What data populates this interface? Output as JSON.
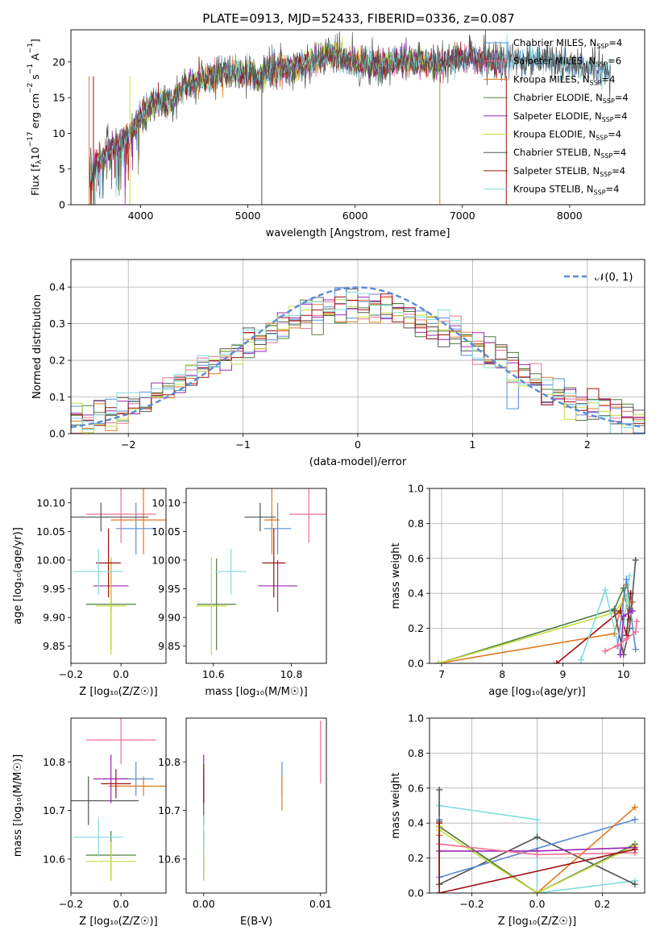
{
  "figure": {
    "title": "PLATE=0913, MJD=52433, FIBERID=0336, z=0.087"
  },
  "colors": {
    "Chabrier MILES": "#5b8dd6",
    "Salpeter MILES": "#f07090",
    "Kroupa MILES": "#e07a1f",
    "Chabrier ELODIE": "#4f7d3f",
    "Salpeter ELODIE": "#9b27b0",
    "Kroupa ELODIE": "#c6dd40",
    "Chabrier STELIB": "#555555",
    "Salpeter STELIB": "#a01010",
    "Kroupa STELIB": "#80dcdc",
    "normal": "#5b8dd6"
  },
  "chart_data": [
    {
      "id": "spectrum",
      "type": "line",
      "xlabel": "wavelength [Angstrom, rest frame]",
      "ylabel_parts": {
        "pre": "Flux [f",
        "sub1": "λ",
        "mid": "10",
        "sup1": "−17",
        "mid2": " erg cm",
        "sup2": "−2",
        "mid3": " s",
        "sup3": "−1",
        "mid4": " A",
        "sup4": "−1",
        "post": "]"
      },
      "xlim": [
        3350,
        8700
      ],
      "ylim": [
        0,
        24.5
      ],
      "xticks": [
        4000,
        5000,
        6000,
        7000,
        8000
      ],
      "yticks": [
        0,
        5,
        10,
        15,
        20
      ],
      "grid": false,
      "legend_position": "top-right",
      "series": [
        {
          "name": "Chabrier MILES",
          "nssp": "4"
        },
        {
          "name": "Salpeter MILES",
          "nssp": "6"
        },
        {
          "name": "Kroupa MILES",
          "nssp": "4"
        },
        {
          "name": "Chabrier ELODIE",
          "nssp": "4"
        },
        {
          "name": "Salpeter ELODIE",
          "nssp": "4"
        },
        {
          "name": "Kroupa ELODIE",
          "nssp": "4"
        },
        {
          "name": "Chabrier STELIB",
          "nssp": "4"
        },
        {
          "name": "Salpeter STELIB",
          "nssp": "4"
        },
        {
          "name": "Kroupa STELIB",
          "nssp": "4"
        }
      ],
      "continuum": {
        "x": [
          3500,
          3600,
          3700,
          3800,
          3900,
          4000,
          4100,
          4200,
          4300,
          4400,
          4500,
          4600,
          4800,
          5000,
          5100,
          5200,
          5400,
          5600,
          5800,
          6000,
          6200,
          6400,
          6600,
          6800,
          7000,
          7200,
          7400,
          7600,
          7800,
          8000,
          8200,
          8400
        ],
        "y": [
          4.5,
          5.5,
          7.5,
          8.5,
          9.5,
          12.5,
          14,
          14.5,
          14.5,
          16.5,
          17,
          17.8,
          18.5,
          18.5,
          17.5,
          19,
          19.2,
          20.2,
          21,
          20,
          19.5,
          20,
          20,
          19.8,
          20.5,
          20.5,
          20,
          20.5,
          20.5,
          19.5,
          19,
          18
        ]
      }
    },
    {
      "id": "residuals",
      "type": "line",
      "xlabel": "(data-model)/error",
      "ylabel": "Normed distribution",
      "xlim": [
        -2.5,
        2.5
      ],
      "ylim": [
        0,
        0.475
      ],
      "xticks": [
        -2,
        -1,
        0,
        1,
        2
      ],
      "yticks": [
        0.0,
        0.1,
        0.2,
        0.3,
        0.4
      ],
      "grid": true,
      "legend_position": "top-right",
      "legend_label": "𝒩(0, 1)"
    },
    {
      "id": "age_vs_Z",
      "type": "scatter",
      "xlabel": "Z [log₁₀(Z/Z☉)]",
      "ylabel": "age  [log₁₀(age/yr)]",
      "xlim": [
        -0.2,
        0.18
      ],
      "ylim": [
        9.82,
        10.125
      ],
      "xticks": [
        -0.2,
        0.0
      ],
      "yticks": [
        9.85,
        9.9,
        9.95,
        10.0,
        10.05,
        10.1
      ],
      "points": [
        {
          "s": "Chabrier MILES",
          "x": 0.06,
          "xe": 0.08,
          "y": 10.055,
          "ye": 0.045
        },
        {
          "s": "Salpeter MILES",
          "x": 0.0,
          "xe": 0.14,
          "y": 10.08,
          "ye": 0.05
        },
        {
          "s": "Kroupa MILES",
          "x": 0.09,
          "xe": 0.13,
          "y": 10.07,
          "ye": 0.06
        },
        {
          "s": "Chabrier ELODIE",
          "x": -0.04,
          "xe": 0.1,
          "y": 9.923,
          "ye": 0.08
        },
        {
          "s": "Salpeter ELODIE",
          "x": -0.04,
          "xe": 0.07,
          "y": 9.955,
          "ye": 0.045
        },
        {
          "s": "Kroupa ELODIE",
          "x": -0.04,
          "xe": 0.06,
          "y": 9.92,
          "ye": 0.085
        },
        {
          "s": "Chabrier STELIB",
          "x": -0.08,
          "xe": 0.19,
          "y": 10.075,
          "ye": 0.025
        },
        {
          "s": "Salpeter STELIB",
          "x": -0.05,
          "xe": 0.05,
          "y": 9.995,
          "ye": 0.06
        },
        {
          "s": "Kroupa STELIB",
          "x": -0.09,
          "xe": 0.1,
          "y": 9.98,
          "ye": 0.04
        }
      ]
    },
    {
      "id": "age_vs_mass",
      "type": "scatter",
      "xlabel": "mass [log₁₀(M/M☉)]",
      "ylabel": "",
      "xlim": [
        10.53,
        10.89
      ],
      "ylim": [
        9.82,
        10.125
      ],
      "xticks": [
        10.6,
        10.8
      ],
      "yticks": [
        9.85,
        9.9,
        9.95,
        10.0,
        10.05,
        10.1
      ],
      "points": [
        {
          "s": "Chabrier MILES",
          "x": 10.765,
          "xe": 0.035,
          "y": 10.055,
          "ye": 0.045
        },
        {
          "s": "Salpeter MILES",
          "x": 10.845,
          "xe": 0.05,
          "y": 10.08,
          "ye": 0.05
        },
        {
          "s": "Kroupa MILES",
          "x": 10.75,
          "xe": 0.02,
          "y": 10.07,
          "ye": 0.06
        },
        {
          "s": "Chabrier ELODIE",
          "x": 10.608,
          "xe": 0.05,
          "y": 9.923,
          "ye": 0.08
        },
        {
          "s": "Salpeter ELODIE",
          "x": 10.765,
          "xe": 0.05,
          "y": 9.955,
          "ye": 0.045
        },
        {
          "s": "Kroupa ELODIE",
          "x": 10.595,
          "xe": 0.04,
          "y": 9.92,
          "ye": 0.085
        },
        {
          "s": "Chabrier STELIB",
          "x": 10.72,
          "xe": 0.04,
          "y": 10.075,
          "ye": 0.025
        },
        {
          "s": "Salpeter STELIB",
          "x": 10.755,
          "xe": 0.03,
          "y": 9.995,
          "ye": 0.06
        },
        {
          "s": "Kroupa STELIB",
          "x": 10.645,
          "xe": 0.04,
          "y": 9.98,
          "ye": 0.04
        }
      ]
    },
    {
      "id": "weight_vs_age",
      "type": "line",
      "xlabel": "age  [log₁₀(age/yr)]",
      "ylabel": "mass weight",
      "xlim": [
        6.8,
        10.35
      ],
      "ylim": [
        0,
        1
      ],
      "xticks": [
        7,
        8,
        9,
        10
      ],
      "yticks": [
        0.0,
        0.2,
        0.4,
        0.6,
        0.8,
        1.0
      ],
      "grid": true,
      "series": [
        {
          "s": "Kroupa MILES",
          "x": [
            6.95,
            9.85,
            10.05,
            10.15
          ],
          "y": [
            0.0,
            0.17,
            0.45,
            0.35
          ]
        },
        {
          "s": "Chabrier ELODIE",
          "x": [
            6.95,
            9.85,
            10.0,
            10.1
          ],
          "y": [
            0.0,
            0.31,
            0.43,
            0.25
          ]
        },
        {
          "s": "Kroupa ELODIE",
          "x": [
            6.95,
            9.85,
            10.05,
            10.1
          ],
          "y": [
            0.0,
            0.29,
            0.38,
            0.32
          ]
        },
        {
          "s": "Salpeter STELIB",
          "x": [
            8.9,
            9.95,
            10.05,
            10.12
          ],
          "y": [
            0.0,
            0.3,
            0.16,
            0.4
          ]
        },
        {
          "s": "Chabrier STELIB",
          "x": [
            9.85,
            10.0,
            10.1,
            10.2
          ],
          "y": [
            0.3,
            0.05,
            0.2,
            0.59
          ]
        },
        {
          "s": "Kroupa STELIB",
          "x": [
            9.3,
            9.7,
            9.95,
            10.1
          ],
          "y": [
            0.02,
            0.42,
            0.05,
            0.5
          ]
        },
        {
          "s": "Chabrier MILES",
          "x": [
            9.9,
            10.05,
            10.2
          ],
          "y": [
            0.1,
            0.48,
            0.08
          ]
        },
        {
          "s": "Salpeter ELODIE",
          "x": [
            9.95,
            10.0,
            10.15
          ],
          "y": [
            0.05,
            0.27,
            0.3
          ]
        },
        {
          "s": "Salpeter MILES",
          "x": [
            9.7,
            9.9,
            10.05,
            10.2,
            10.22
          ],
          "y": [
            0.07,
            0.1,
            0.14,
            0.18,
            0.24
          ]
        }
      ]
    },
    {
      "id": "mass_vs_Z",
      "type": "scatter",
      "xlabel": "Z [log₁₀(Z/Z☉)]",
      "ylabel": "mass [log₁₀(M/M☉)]",
      "xlim": [
        -0.2,
        0.18
      ],
      "ylim": [
        10.53,
        10.89
      ],
      "xticks": [
        -0.2,
        0.0
      ],
      "yticks": [
        10.6,
        10.7,
        10.8
      ],
      "points": [
        {
          "s": "Chabrier MILES",
          "x": 0.06,
          "xe": 0.07,
          "y": 10.765,
          "ye": 0.035
        },
        {
          "s": "Salpeter MILES",
          "x": 0.0,
          "xe": 0.14,
          "y": 10.845,
          "ye": 0.05
        },
        {
          "s": "Kroupa MILES",
          "x": 0.09,
          "xe": 0.14,
          "y": 10.75,
          "ye": 0.02
        },
        {
          "s": "Chabrier ELODIE",
          "x": -0.04,
          "xe": 0.1,
          "y": 10.608,
          "ye": 0.05
        },
        {
          "s": "Salpeter ELODIE",
          "x": -0.04,
          "xe": 0.07,
          "y": 10.765,
          "ye": 0.05
        },
        {
          "s": "Kroupa ELODIE",
          "x": -0.04,
          "xe": 0.1,
          "y": 10.595,
          "ye": 0.04
        },
        {
          "s": "Chabrier STELIB",
          "x": -0.13,
          "xe": 0.2,
          "y": 10.72,
          "ye": 0.05
        },
        {
          "s": "Salpeter STELIB",
          "x": -0.02,
          "xe": 0.06,
          "y": 10.755,
          "ye": 0.03
        },
        {
          "s": "Kroupa STELIB",
          "x": -0.09,
          "xe": 0.1,
          "y": 10.645,
          "ye": 0.04
        }
      ]
    },
    {
      "id": "mass_vs_ebv",
      "type": "scatter",
      "xlabel": "E(B-V)",
      "ylabel": "",
      "xlim": [
        -0.0015,
        0.0105
      ],
      "ylim": [
        10.53,
        10.89
      ],
      "xticks": [
        0.0,
        0.01
      ],
      "xticklabels": [
        "0.00",
        "0.01"
      ],
      "yticks": [
        10.6,
        10.7,
        10.8
      ],
      "points": [
        {
          "s": "Chabrier MILES",
          "x": 0.0067,
          "y": 10.765,
          "ye": 0.035
        },
        {
          "s": "Salpeter MILES",
          "x": 0.01,
          "y": 10.82,
          "ye": 0.065
        },
        {
          "s": "Kroupa MILES",
          "x": 0.0067,
          "y": 10.735,
          "ye": 0.035
        },
        {
          "s": "Chabrier ELODIE",
          "x": 0.0,
          "y": 10.608,
          "ye": 0.05
        },
        {
          "s": "Salpeter ELODIE",
          "x": 0.0,
          "y": 10.765,
          "ye": 0.05
        },
        {
          "s": "Kroupa ELODIE",
          "x": 0.0,
          "y": 10.595,
          "ye": 0.04
        },
        {
          "s": "Chabrier STELIB",
          "x": 0.0,
          "y": 10.72,
          "ye": 0.05
        },
        {
          "s": "Salpeter STELIB",
          "x": 0.0,
          "y": 10.755,
          "ye": 0.04
        },
        {
          "s": "Kroupa STELIB",
          "x": 0.0,
          "y": 10.65,
          "ye": 0.04
        }
      ]
    },
    {
      "id": "weight_vs_Z",
      "type": "line",
      "xlabel": "Z [log₁₀(Z/Z☉)]",
      "ylabel": "mass weight",
      "xlim": [
        -0.33,
        0.33
      ],
      "ylim": [
        0,
        1
      ],
      "xticks": [
        -0.2,
        0.0,
        0.2
      ],
      "yticks": [
        0.0,
        0.2,
        0.4,
        0.6,
        0.8,
        1.0
      ],
      "grid": true,
      "series": [
        {
          "s": "Kroupa STELIB",
          "x": [
            -0.3,
            -0.3,
            0.0,
            0.0,
            0.3
          ],
          "y": [
            0.05,
            0.5,
            0.42,
            0.0,
            0.07
          ]
        },
        {
          "s": "Chabrier STELIB",
          "x": [
            -0.3,
            -0.3,
            0.0,
            0.3
          ],
          "y": [
            0.59,
            0.05,
            0.32,
            0.05
          ]
        },
        {
          "s": "Chabrier MILES",
          "x": [
            -0.3,
            -0.3,
            0.3
          ],
          "y": [
            0.42,
            0.09,
            0.42
          ]
        },
        {
          "s": "Kroupa MILES",
          "x": [
            -0.3,
            -0.3,
            0.0,
            0.3
          ],
          "y": [
            0.33,
            0.38,
            0.0,
            0.49
          ]
        },
        {
          "s": "Chabrier ELODIE",
          "x": [
            -0.3,
            -0.3,
            0.0,
            0.3
          ],
          "y": [
            0.41,
            0.38,
            0.0,
            0.28
          ]
        },
        {
          "s": "Kroupa ELODIE",
          "x": [
            -0.3,
            -0.3,
            0.0,
            0.3
          ],
          "y": [
            0.38,
            0.36,
            0.0,
            0.27
          ]
        },
        {
          "s": "Salpeter ELODIE",
          "x": [
            -0.3,
            0.0,
            0.3
          ],
          "y": [
            0.24,
            0.24,
            0.26
          ]
        },
        {
          "s": "Salpeter MILES",
          "x": [
            -0.3,
            0.0,
            0.3
          ],
          "y": [
            0.28,
            0.22,
            0.23
          ]
        },
        {
          "s": "Salpeter STELIB",
          "x": [
            -0.3,
            -0.3,
            0.3
          ],
          "y": [
            0.4,
            0.0,
            0.25
          ]
        }
      ]
    }
  ]
}
